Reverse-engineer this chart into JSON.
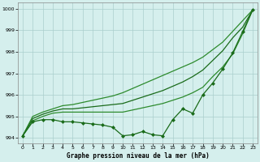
{
  "title": "Graphe pression niveau de la mer (hPa)",
  "x": [
    0,
    1,
    2,
    3,
    4,
    5,
    6,
    7,
    8,
    9,
    10,
    11,
    12,
    13,
    14,
    15,
    16,
    17,
    18,
    19,
    20,
    21,
    22,
    23
  ],
  "line_flat": [
    994.1,
    994.75,
    994.85,
    994.85,
    994.75,
    994.75,
    994.7,
    994.65,
    994.6,
    994.5,
    994.1,
    994.15,
    994.3,
    994.15,
    994.1,
    994.85,
    995.35,
    995.15,
    996.0,
    996.55,
    997.2,
    997.95,
    998.95,
    999.95
  ],
  "line_steep1": [
    994.1,
    994.8,
    995.0,
    995.15,
    995.2,
    995.2,
    995.2,
    995.2,
    995.2,
    995.2,
    995.2,
    995.3,
    995.4,
    995.5,
    995.6,
    995.75,
    995.9,
    996.1,
    996.35,
    996.85,
    997.3,
    997.9,
    998.85,
    999.95
  ],
  "line_steep2": [
    994.1,
    994.9,
    995.1,
    995.25,
    995.35,
    995.35,
    995.4,
    995.45,
    995.5,
    995.55,
    995.6,
    995.75,
    995.9,
    996.05,
    996.2,
    996.4,
    996.6,
    996.85,
    997.15,
    997.6,
    998.05,
    998.65,
    999.15,
    999.95
  ],
  "line_steep3": [
    994.1,
    995.0,
    995.2,
    995.35,
    995.5,
    995.55,
    995.65,
    995.75,
    995.85,
    995.95,
    996.1,
    996.3,
    996.5,
    996.7,
    996.9,
    997.1,
    997.3,
    997.5,
    997.75,
    998.1,
    998.45,
    998.95,
    999.45,
    999.95
  ],
  "ylim": [
    993.75,
    1000.3
  ],
  "yticks": [
    994,
    995,
    996,
    997,
    998,
    999,
    1000
  ],
  "xticks": [
    0,
    1,
    2,
    3,
    4,
    5,
    6,
    7,
    8,
    9,
    10,
    11,
    12,
    13,
    14,
    15,
    16,
    17,
    18,
    19,
    20,
    21,
    22,
    23
  ],
  "bg_color": "#d5efed",
  "grid_color": "#aacfcc",
  "line_color_dark": "#1a6b1a",
  "line_color_mid": "#2d8b2d",
  "marker": "D",
  "marker_size": 2.0,
  "line_width": 0.9
}
